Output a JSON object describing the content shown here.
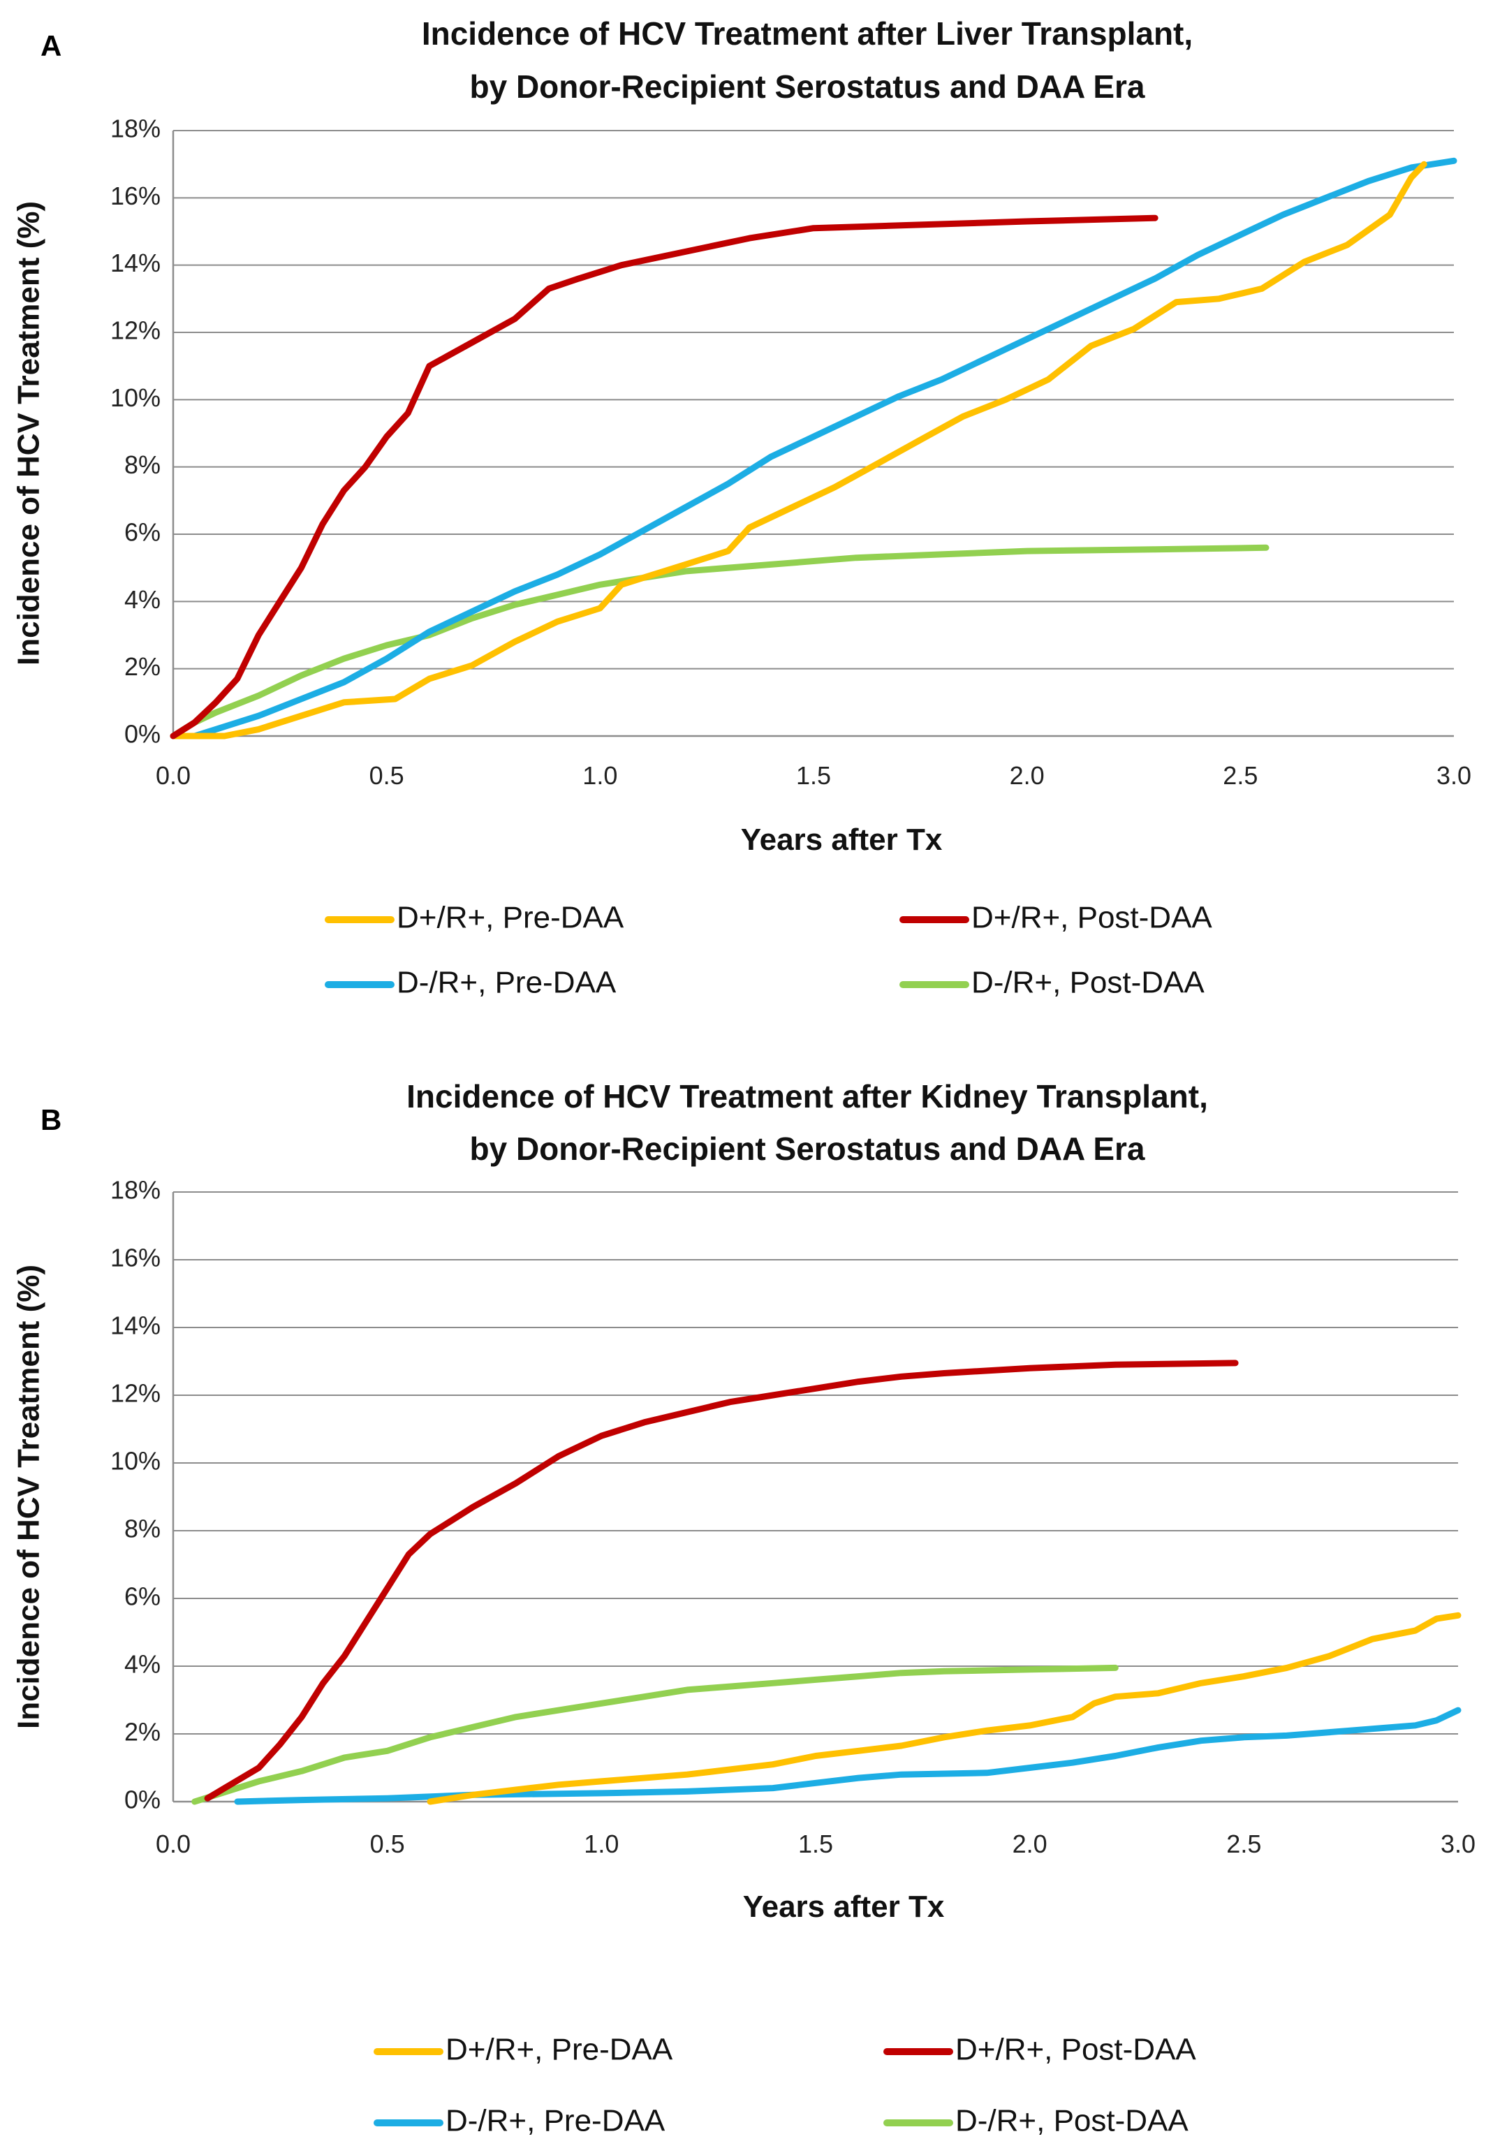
{
  "chart_data": [
    {
      "panel": "A",
      "type": "line",
      "title": [
        "Incidence of HCV Treatment after Liver Transplant,",
        "by Donor-Recipient Serostatus and DAA Era"
      ],
      "xlabel": "Years after Tx",
      "ylabel": "Incidence of HCV Treatment (%)",
      "xlim": [
        0,
        3
      ],
      "ylim": [
        0,
        18
      ],
      "xticks": [
        0,
        0.5,
        1,
        1.5,
        2,
        2.5,
        3
      ],
      "xtick_labels": [
        "0.0",
        "0.5",
        "1.0",
        "1.5",
        "2.0",
        "2.5",
        "3.0"
      ],
      "yticks": [
        0,
        2,
        4,
        6,
        8,
        10,
        12,
        14,
        16,
        18
      ],
      "ytick_labels": [
        "0%",
        "2%",
        "4%",
        "6%",
        "8%",
        "10%",
        "12%",
        "14%",
        "16%",
        "18%"
      ],
      "grid": "horizontal",
      "legend_position": "bottom",
      "series": [
        {
          "name": "D+/R+, Pre-DAA",
          "color": "#FFC000",
          "points": [
            [
              0,
              0
            ],
            [
              0.12,
              0
            ],
            [
              0.2,
              0.2
            ],
            [
              0.3,
              0.6
            ],
            [
              0.4,
              1.0
            ],
            [
              0.52,
              1.1
            ],
            [
              0.6,
              1.7
            ],
            [
              0.7,
              2.1
            ],
            [
              0.8,
              2.8
            ],
            [
              0.9,
              3.4
            ],
            [
              1.0,
              3.8
            ],
            [
              1.05,
              4.5
            ],
            [
              1.1,
              4.7
            ],
            [
              1.2,
              5.1
            ],
            [
              1.3,
              5.5
            ],
            [
              1.35,
              6.2
            ],
            [
              1.45,
              6.8
            ],
            [
              1.55,
              7.4
            ],
            [
              1.65,
              8.1
            ],
            [
              1.75,
              8.8
            ],
            [
              1.85,
              9.5
            ],
            [
              1.95,
              10.0
            ],
            [
              2.05,
              10.6
            ],
            [
              2.15,
              11.6
            ],
            [
              2.25,
              12.1
            ],
            [
              2.35,
              12.9
            ],
            [
              2.45,
              13.0
            ],
            [
              2.55,
              13.3
            ],
            [
              2.65,
              14.1
            ],
            [
              2.75,
              14.6
            ],
            [
              2.85,
              15.5
            ],
            [
              2.9,
              16.6
            ],
            [
              2.93,
              17.0
            ]
          ]
        },
        {
          "name": "D+/R+, Post-DAA",
          "color": "#C00000",
          "points": [
            [
              0,
              0
            ],
            [
              0.05,
              0.4
            ],
            [
              0.1,
              1.0
            ],
            [
              0.15,
              1.7
            ],
            [
              0.2,
              3.0
            ],
            [
              0.25,
              4.0
            ],
            [
              0.3,
              5.0
            ],
            [
              0.35,
              6.3
            ],
            [
              0.4,
              7.3
            ],
            [
              0.45,
              8.0
            ],
            [
              0.5,
              8.9
            ],
            [
              0.55,
              9.6
            ],
            [
              0.6,
              11.0
            ],
            [
              0.7,
              11.7
            ],
            [
              0.8,
              12.4
            ],
            [
              0.88,
              13.3
            ],
            [
              0.95,
              13.6
            ],
            [
              1.05,
              14.0
            ],
            [
              1.2,
              14.4
            ],
            [
              1.35,
              14.8
            ],
            [
              1.5,
              15.1
            ],
            [
              1.75,
              15.2
            ],
            [
              2.0,
              15.3
            ],
            [
              2.3,
              15.4
            ]
          ]
        },
        {
          "name": "D-/R+, Pre-DAA",
          "color": "#1CADE4",
          "points": [
            [
              0,
              0
            ],
            [
              0.05,
              0
            ],
            [
              0.1,
              0.2
            ],
            [
              0.2,
              0.6
            ],
            [
              0.3,
              1.1
            ],
            [
              0.4,
              1.6
            ],
            [
              0.5,
              2.3
            ],
            [
              0.6,
              3.1
            ],
            [
              0.7,
              3.7
            ],
            [
              0.8,
              4.3
            ],
            [
              0.9,
              4.8
            ],
            [
              1.0,
              5.4
            ],
            [
              1.1,
              6.1
            ],
            [
              1.2,
              6.8
            ],
            [
              1.3,
              7.5
            ],
            [
              1.4,
              8.3
            ],
            [
              1.5,
              8.9
            ],
            [
              1.6,
              9.5
            ],
            [
              1.7,
              10.1
            ],
            [
              1.8,
              10.6
            ],
            [
              1.9,
              11.2
            ],
            [
              2.0,
              11.8
            ],
            [
              2.1,
              12.4
            ],
            [
              2.2,
              13.0
            ],
            [
              2.3,
              13.6
            ],
            [
              2.4,
              14.3
            ],
            [
              2.5,
              14.9
            ],
            [
              2.6,
              15.5
            ],
            [
              2.7,
              16.0
            ],
            [
              2.8,
              16.5
            ],
            [
              2.9,
              16.9
            ],
            [
              3.0,
              17.1
            ]
          ]
        },
        {
          "name": "D-/R+, Post-DAA",
          "color": "#92D050",
          "points": [
            [
              0,
              0
            ],
            [
              0.05,
              0.4
            ],
            [
              0.1,
              0.7
            ],
            [
              0.2,
              1.2
            ],
            [
              0.3,
              1.8
            ],
            [
              0.4,
              2.3
            ],
            [
              0.5,
              2.7
            ],
            [
              0.6,
              3.0
            ],
            [
              0.7,
              3.5
            ],
            [
              0.8,
              3.9
            ],
            [
              0.9,
              4.2
            ],
            [
              1.0,
              4.5
            ],
            [
              1.1,
              4.7
            ],
            [
              1.2,
              4.9
            ],
            [
              1.4,
              5.1
            ],
            [
              1.6,
              5.3
            ],
            [
              1.8,
              5.4
            ],
            [
              2.0,
              5.5
            ],
            [
              2.3,
              5.55
            ],
            [
              2.56,
              5.6
            ]
          ]
        }
      ]
    },
    {
      "panel": "B",
      "type": "line",
      "title": [
        "Incidence of HCV Treatment after Kidney Transplant,",
        "by Donor-Recipient Serostatus and DAA Era"
      ],
      "xlabel": "Years after Tx",
      "ylabel": "Incidence of HCV Treatment (%)",
      "xlim": [
        0,
        3
      ],
      "ylim": [
        0,
        18
      ],
      "xticks": [
        0,
        0.5,
        1,
        1.5,
        2,
        2.5,
        3
      ],
      "xtick_labels": [
        "0.0",
        "0.5",
        "1.0",
        "1.5",
        "2.0",
        "2.5",
        "3.0"
      ],
      "yticks": [
        0,
        2,
        4,
        6,
        8,
        10,
        12,
        14,
        16,
        18
      ],
      "ytick_labels": [
        "0%",
        "2%",
        "4%",
        "6%",
        "8%",
        "10%",
        "12%",
        "14%",
        "16%",
        "18%"
      ],
      "grid": "horizontal",
      "legend_position": "bottom",
      "series": [
        {
          "name": "D+/R+, Pre-DAA",
          "color": "#FFC000",
          "points": [
            [
              0.6,
              0
            ],
            [
              0.7,
              0.2
            ],
            [
              0.8,
              0.35
            ],
            [
              0.9,
              0.5
            ],
            [
              1.0,
              0.6
            ],
            [
              1.2,
              0.8
            ],
            [
              1.4,
              1.1
            ],
            [
              1.5,
              1.35
            ],
            [
              1.6,
              1.5
            ],
            [
              1.7,
              1.65
            ],
            [
              1.8,
              1.9
            ],
            [
              1.9,
              2.1
            ],
            [
              2.0,
              2.25
            ],
            [
              2.1,
              2.5
            ],
            [
              2.15,
              2.9
            ],
            [
              2.2,
              3.1
            ],
            [
              2.3,
              3.2
            ],
            [
              2.4,
              3.5
            ],
            [
              2.5,
              3.7
            ],
            [
              2.6,
              3.95
            ],
            [
              2.7,
              4.3
            ],
            [
              2.8,
              4.8
            ],
            [
              2.9,
              5.05
            ],
            [
              2.95,
              5.4
            ],
            [
              3.0,
              5.5
            ]
          ]
        },
        {
          "name": "D+/R+, Post-DAA",
          "color": "#C00000",
          "points": [
            [
              0.08,
              0.1
            ],
            [
              0.12,
              0.4
            ],
            [
              0.2,
              1.0
            ],
            [
              0.25,
              1.7
            ],
            [
              0.3,
              2.5
            ],
            [
              0.35,
              3.5
            ],
            [
              0.4,
              4.3
            ],
            [
              0.45,
              5.3
            ],
            [
              0.5,
              6.3
            ],
            [
              0.55,
              7.3
            ],
            [
              0.6,
              7.9
            ],
            [
              0.65,
              8.3
            ],
            [
              0.7,
              8.7
            ],
            [
              0.8,
              9.4
            ],
            [
              0.9,
              10.2
            ],
            [
              1.0,
              10.8
            ],
            [
              1.1,
              11.2
            ],
            [
              1.2,
              11.5
            ],
            [
              1.3,
              11.8
            ],
            [
              1.4,
              12.0
            ],
            [
              1.5,
              12.2
            ],
            [
              1.6,
              12.4
            ],
            [
              1.7,
              12.55
            ],
            [
              1.8,
              12.65
            ],
            [
              2.0,
              12.8
            ],
            [
              2.2,
              12.9
            ],
            [
              2.48,
              12.95
            ]
          ]
        },
        {
          "name": "D-/R+, Pre-DAA",
          "color": "#1CADE4",
          "points": [
            [
              0.15,
              0
            ],
            [
              0.3,
              0.05
            ],
            [
              0.5,
              0.1
            ],
            [
              0.7,
              0.2
            ],
            [
              1.0,
              0.25
            ],
            [
              1.2,
              0.3
            ],
            [
              1.4,
              0.4
            ],
            [
              1.5,
              0.55
            ],
            [
              1.6,
              0.7
            ],
            [
              1.7,
              0.8
            ],
            [
              1.9,
              0.85
            ],
            [
              2.0,
              1.0
            ],
            [
              2.1,
              1.15
            ],
            [
              2.2,
              1.35
            ],
            [
              2.3,
              1.6
            ],
            [
              2.4,
              1.8
            ],
            [
              2.5,
              1.9
            ],
            [
              2.6,
              1.95
            ],
            [
              2.7,
              2.05
            ],
            [
              2.8,
              2.15
            ],
            [
              2.9,
              2.25
            ],
            [
              2.95,
              2.4
            ],
            [
              3.0,
              2.7
            ]
          ]
        },
        {
          "name": "D-/R+, Post-DAA",
          "color": "#92D050",
          "points": [
            [
              0.05,
              0
            ],
            [
              0.1,
              0.2
            ],
            [
              0.2,
              0.6
            ],
            [
              0.3,
              0.9
            ],
            [
              0.4,
              1.3
            ],
            [
              0.5,
              1.5
            ],
            [
              0.55,
              1.7
            ],
            [
              0.6,
              1.9
            ],
            [
              0.7,
              2.2
            ],
            [
              0.8,
              2.5
            ],
            [
              0.9,
              2.7
            ],
            [
              1.0,
              2.9
            ],
            [
              1.1,
              3.1
            ],
            [
              1.2,
              3.3
            ],
            [
              1.3,
              3.4
            ],
            [
              1.4,
              3.5
            ],
            [
              1.5,
              3.6
            ],
            [
              1.6,
              3.7
            ],
            [
              1.7,
              3.8
            ],
            [
              1.8,
              3.85
            ],
            [
              2.0,
              3.9
            ],
            [
              2.2,
              3.95
            ]
          ]
        }
      ]
    }
  ]
}
